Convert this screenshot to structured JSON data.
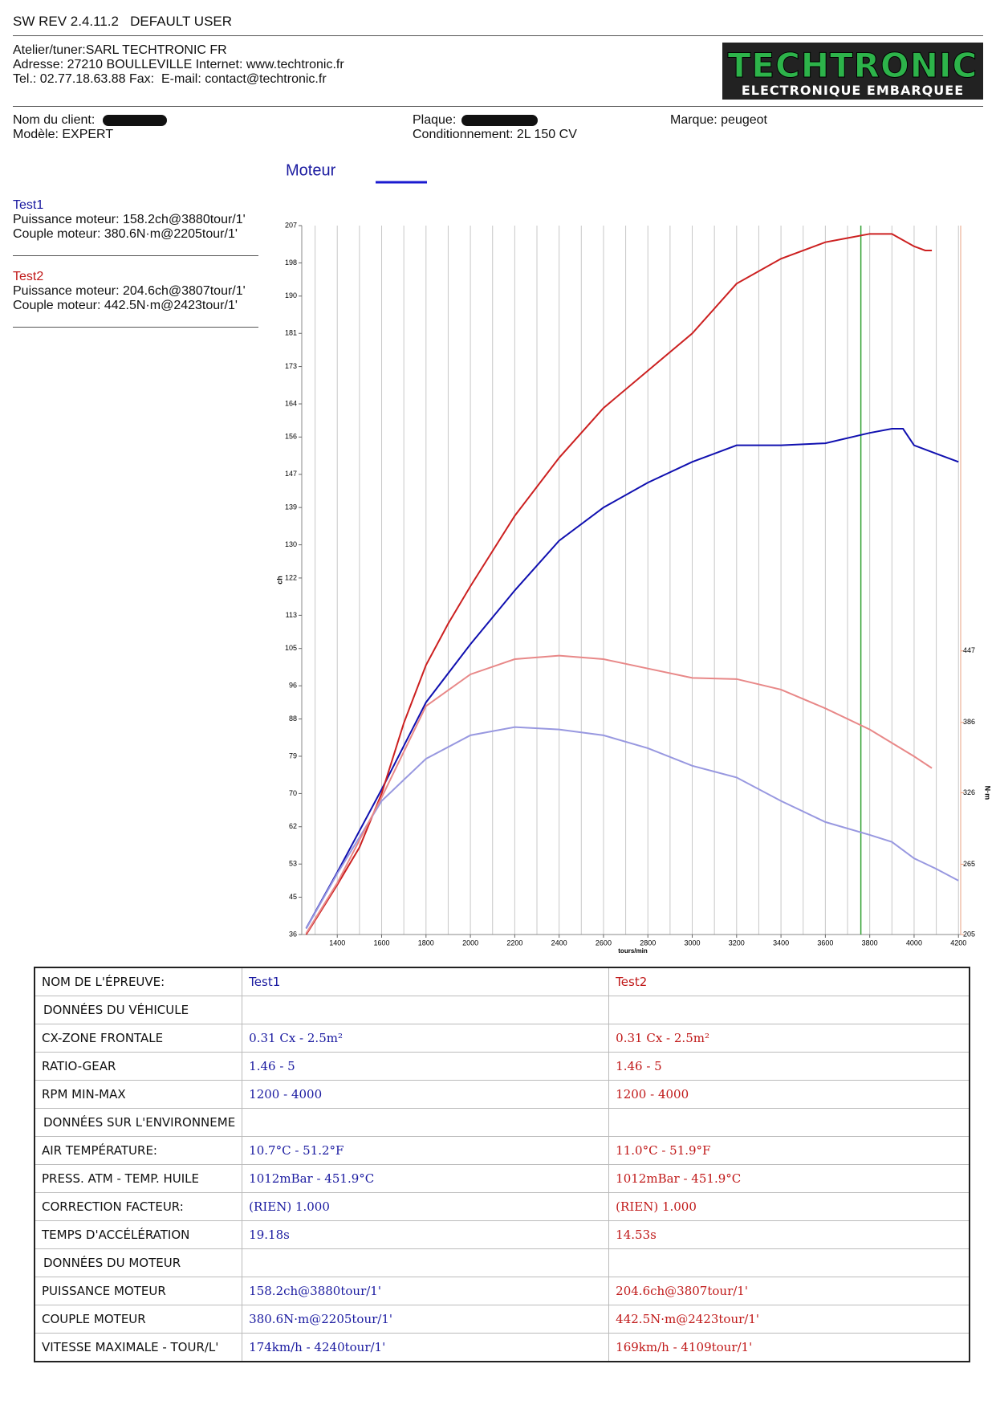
{
  "header": {
    "software": "SW REV 2.4.11.2   DEFAULT USER"
  },
  "shop": {
    "lines": [
      "Atelier/tuner:SARL TECHTRONIC FR",
      "Adresse: 27210 BOULLEVILLE Internet: www.techtronic.fr",
      "Tel.: 02.77.18.63.88 Fax:  E-mail: contact@techtronic.fr"
    ]
  },
  "logo": {
    "name": "TECHTRONIC",
    "tagline": "ELECTRONIQUE EMBARQUEE"
  },
  "vehicle": {
    "client": "Nom du client:",
    "plate": "Plaque:",
    "brand": "Marque: peugeot",
    "model": "Modèle: EXPERT",
    "conditioning": "Conditionnement: 2L 150 CV"
  },
  "tests": [
    {
      "name": "Test1",
      "power": "Puissance moteur: 158.2ch@3880tour/1'",
      "torque": "Couple moteur: 380.6N·m@2205tour/1'"
    },
    {
      "name": "Test2",
      "power": "Puissance moteur: 204.6ch@3807tour/1'",
      "torque": "Couple moteur: 442.5N·m@2423tour/1'"
    }
  ],
  "chart_data": {
    "type": "line",
    "title": "Moteur",
    "x_label": "tours/min",
    "y_label": "ch",
    "y2_label": "N·m",
    "xlim": [
      1240,
      4210
    ],
    "xticks": [
      1400,
      1600,
      1800,
      2000,
      2200,
      2400,
      2600,
      2800,
      3000,
      3200,
      3400,
      3600,
      3800,
      4000,
      4200
    ],
    "xgrid": [
      1300,
      1400,
      1500,
      1600,
      1700,
      1800,
      1900,
      2000,
      2100,
      2200,
      2300,
      2400,
      2500,
      2600,
      2700,
      2800,
      2900,
      3000,
      3100,
      3200,
      3300,
      3400,
      3500,
      3600,
      3700,
      3800,
      3900,
      4000,
      4100,
      4200
    ],
    "ylim": [
      36,
      207
    ],
    "yticks": [
      36,
      45,
      53,
      62,
      70,
      79,
      88,
      96,
      105,
      113,
      122,
      130,
      139,
      147,
      156,
      164,
      173,
      181,
      190,
      198,
      207
    ],
    "y2lim": [
      205,
      810
    ],
    "y2ticks": [
      205,
      265,
      326,
      386,
      447
    ],
    "cursor_x": 3760,
    "cursor_color": "#30a030",
    "grid": true,
    "series": [
      {
        "color": "#1010b0",
        "x": [
          1260,
          1400,
          1600,
          1800,
          2000,
          2200,
          2400,
          2600,
          2800,
          3000,
          3200,
          3400,
          3600,
          3800,
          3900,
          3950,
          4000,
          4100,
          4200
        ],
        "values": [
          37.5,
          51,
          71,
          92,
          106,
          119,
          131,
          139,
          145,
          150,
          154,
          154,
          154.5,
          157,
          158,
          158,
          154,
          152,
          150
        ]
      },
      {
        "color": "#cc2020",
        "x": [
          1260,
          1400,
          1500,
          1600,
          1700,
          1800,
          1900,
          2000,
          2200,
          2400,
          2600,
          2800,
          3000,
          3200,
          3400,
          3600,
          3700,
          3800,
          3900,
          4000,
          4050,
          4080
        ],
        "values": [
          36,
          48,
          57,
          70,
          87,
          101,
          111,
          120,
          137,
          151,
          163,
          172,
          181,
          193,
          199,
          203,
          204,
          205,
          205,
          202,
          201,
          201
        ]
      },
      {
        "color": "#9898e0",
        "axis": "y2",
        "x": [
          1260,
          1400,
          1600,
          1800,
          2000,
          2200,
          2400,
          2600,
          2800,
          3000,
          3200,
          3400,
          3600,
          3800,
          3900,
          4000,
          4100,
          4200
        ],
        "values": [
          210,
          257,
          319,
          355,
          375,
          382,
          380,
          375,
          364,
          349,
          339,
          319,
          301,
          290,
          284,
          270,
          261,
          251
        ]
      },
      {
        "color": "#e88888",
        "axis": "y2",
        "x": [
          1260,
          1400,
          1600,
          1800,
          2000,
          2200,
          2400,
          2600,
          2800,
          3000,
          3200,
          3400,
          3600,
          3800,
          4000,
          4080
        ],
        "values": [
          206,
          249,
          322,
          400,
          427,
          440,
          443,
          440,
          432,
          424,
          423,
          414,
          398,
          380,
          357,
          347
        ]
      }
    ]
  },
  "table": {
    "rows": [
      [
        "NOM DE L'ÉPREUVE:",
        "Test1",
        "Test2"
      ],
      [
        "DONNÉES DU VÉHICULE"
      ],
      [
        "CX-ZONE FRONTALE",
        "0.31 Cx - 2.5m²",
        "0.31 Cx - 2.5m²"
      ],
      [
        "RATIO-GEAR",
        "1.46 - 5",
        "1.46 - 5"
      ],
      [
        "RPM MIN-MAX",
        "1200 - 4000",
        "1200 - 4000"
      ],
      [
        "DONNÉES SUR L'ENVIRONNEME"
      ],
      [
        "AIR TEMPÉRATURE:",
        "10.7°C - 51.2°F",
        "11.0°C - 51.9°F"
      ],
      [
        "PRESS. ATM - TEMP. HUILE",
        "1012mBar - 451.9°C",
        "1012mBar - 451.9°C"
      ],
      [
        "CORRECTION FACTEUR:",
        "(RIEN) 1.000",
        "(RIEN) 1.000"
      ],
      [
        "TEMPS D'ACCÉLÉRATION",
        "19.18s",
        "14.53s"
      ],
      [
        "DONNÉES DU MOTEUR"
      ],
      [
        "PUISSANCE MOTEUR",
        "158.2ch@3880tour/1'",
        "204.6ch@3807tour/1'"
      ],
      [
        "COUPLE MOTEUR",
        "380.6N·m@2205tour/1'",
        "442.5N·m@2423tour/1'"
      ],
      [
        "VITESSE MAXIMALE - TOUR/L'",
        "174km/h - 4240tour/1'",
        "169km/h - 4109tour/1'"
      ]
    ]
  }
}
